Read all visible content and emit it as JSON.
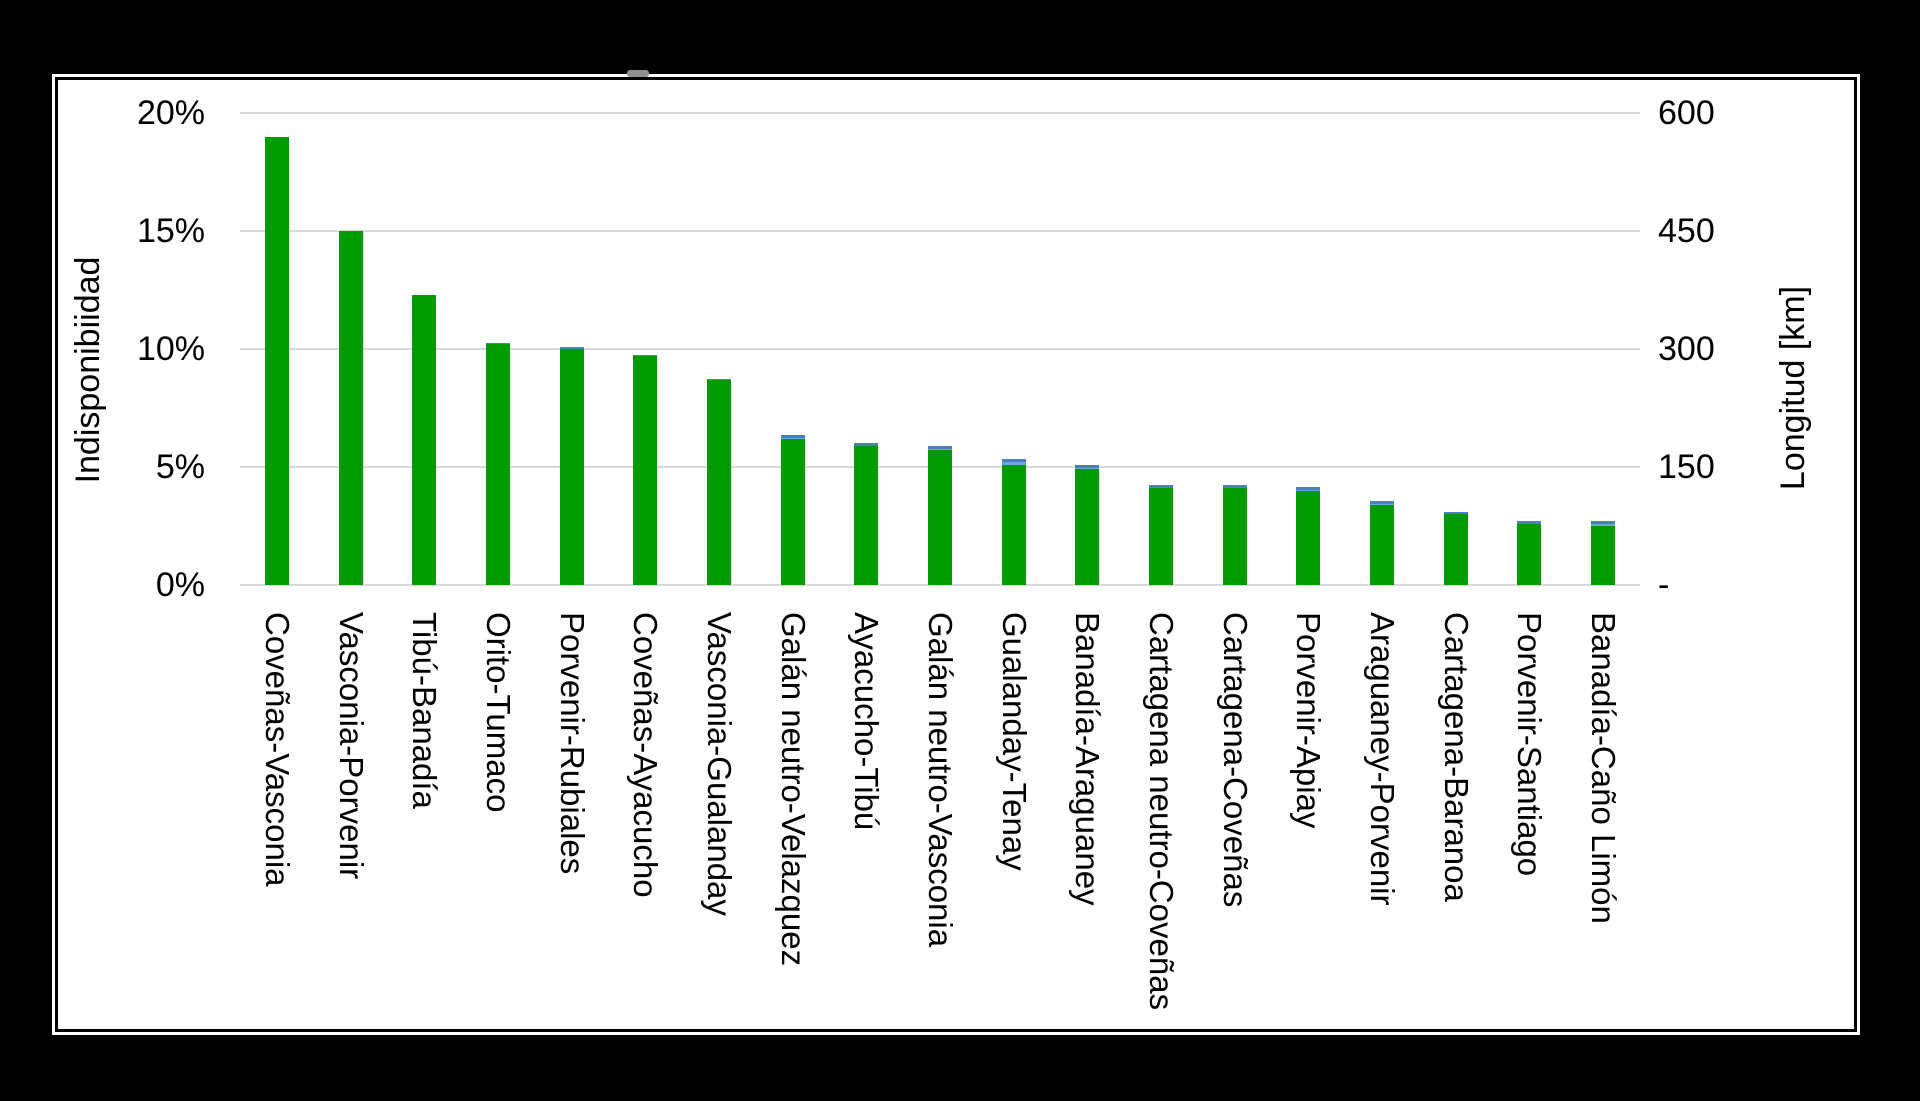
{
  "chart_data": {
    "type": "bar",
    "title": "",
    "legend": "none",
    "grid": true,
    "categories": [
      "Coveñas-Vasconia",
      "Vasconia-Porvenir",
      "Tibú-Banadía",
      "Orito-Tumaco",
      "Porvenir-Rubiales",
      "Coveñas-Ayacucho",
      "Vasconia-Gualanday",
      "Galán neutro-Velazquez",
      "Ayacucho-Tibú",
      "Galán neutro-Vasconia",
      "Gualanday-Tenay",
      "Banadía-Araguaney",
      "Cartagena neutro-Coveñas",
      "Cartagena-Coveñas",
      "Porvenir-Apiay",
      "Araguaney-Porvenir",
      "Cartagena-Baranoa",
      "Porvenir-Santiago",
      "Banadía-Caño Limón"
    ],
    "series": [
      {
        "name": "Indisponibilidad",
        "axis": "left",
        "unit": "%",
        "color": "#009b00",
        "values": [
          19.0,
          15.0,
          12.3,
          10.2,
          10.0,
          9.7,
          8.7,
          6.2,
          5.9,
          5.7,
          5.1,
          4.9,
          4.1,
          4.1,
          4.0,
          3.4,
          3.0,
          2.6,
          2.5
        ]
      },
      {
        "name": "Longitud",
        "axis": "right",
        "unit": "km",
        "color": "#71a5dc",
        "note": "blue bars drawn behind green; only tips taller than green bar are visible",
        "values": [
          null,
          null,
          null,
          307,
          302,
          293,
          262,
          191,
          181,
          177,
          160,
          153,
          127,
          127,
          124,
          107,
          93,
          81,
          81
        ]
      }
    ],
    "left_axis": {
      "label": "Indisponibiidad",
      "ticks": [
        "20%",
        "15%",
        "10%",
        "5%",
        "0%"
      ],
      "range": [
        0,
        20
      ]
    },
    "right_axis": {
      "label": "Longitud [km]",
      "ticks": [
        "600",
        "450",
        "300",
        "150",
        "-"
      ],
      "range": [
        0,
        600
      ]
    }
  },
  "colors": {
    "background": "#000000",
    "panel": "#ffffff",
    "green_bar": "#009b00",
    "blue_bar": "#71a5dc",
    "blue_bar_edge": "#4a7fc1",
    "gridline": "#d9d9d9",
    "text": "#000000"
  }
}
